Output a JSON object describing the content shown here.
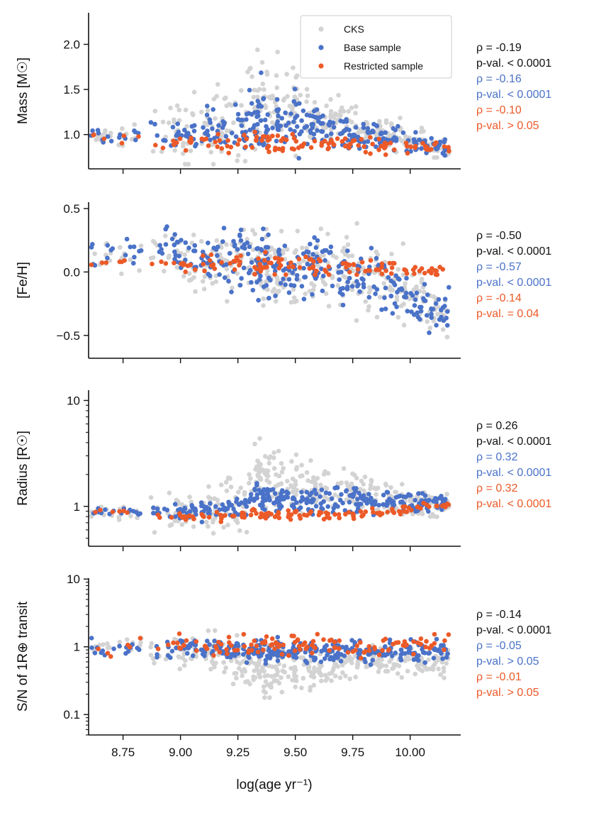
{
  "figure": {
    "x_label": "log(age yr⁻¹)",
    "x_ticks": [
      "8.75",
      "9.00",
      "9.25",
      "9.50",
      "9.75",
      "10.00"
    ],
    "colors": {
      "cks": "#d3d3d3",
      "base": "#4a72c8",
      "restricted": "#ec5a28",
      "text": "#111111",
      "axis": "#111111"
    }
  },
  "legend": {
    "entries": [
      {
        "label": "CKS",
        "color": "#d3d3d3"
      },
      {
        "label": "Base sample",
        "color": "#4a72c8"
      },
      {
        "label": "Restricted sample",
        "color": "#ec5a28"
      }
    ]
  },
  "chart_data": [
    {
      "type": "scatter",
      "id": "mass",
      "ylabel": "Mass [M☉]",
      "yscale": "linear",
      "xlim": [
        8.6,
        10.22
      ],
      "ylim": [
        0.62,
        2.35
      ],
      "y_ticks": [
        {
          "v": 1.0,
          "label": "1.0"
        },
        {
          "v": 1.5,
          "label": "1.5"
        },
        {
          "v": 2.0,
          "label": "2.0"
        }
      ],
      "x": [
        8.66,
        8.78,
        8.92,
        9.02,
        9.14,
        9.24,
        9.34,
        9.38,
        9.46,
        9.54,
        9.62,
        9.72,
        9.82,
        9.92,
        10.02,
        10.12
      ],
      "series": [
        {
          "name": "CKS",
          "center": [
            0.98,
            0.99,
            1.05,
            1.02,
            1.08,
            1.15,
            1.3,
            1.35,
            1.3,
            1.25,
            1.2,
            1.12,
            1.05,
            0.98,
            0.92,
            0.85
          ],
          "spread": [
            0.08,
            0.12,
            0.25,
            0.3,
            0.3,
            0.35,
            0.4,
            0.4,
            0.35,
            0.3,
            0.25,
            0.2,
            0.16,
            0.14,
            0.12,
            0.1
          ]
        },
        {
          "name": "Base sample",
          "center": [
            0.98,
            0.98,
            1.0,
            1.02,
            1.05,
            1.08,
            1.18,
            1.2,
            1.15,
            1.12,
            1.1,
            1.05,
            1.0,
            0.95,
            0.9,
            0.85
          ],
          "spread": [
            0.08,
            0.08,
            0.14,
            0.16,
            0.2,
            0.22,
            0.3,
            0.3,
            0.28,
            0.25,
            0.22,
            0.18,
            0.15,
            0.12,
            0.1,
            0.08
          ]
        },
        {
          "name": "Restricted sample",
          "center": [
            0.99,
            0.96,
            0.92,
            0.9,
            0.92,
            0.9,
            0.92,
            0.9,
            0.88,
            0.9,
            0.88,
            0.9,
            0.88,
            0.86,
            0.86,
            0.85
          ],
          "spread": [
            0.05,
            0.06,
            0.08,
            0.08,
            0.09,
            0.09,
            0.1,
            0.1,
            0.1,
            0.09,
            0.09,
            0.08,
            0.08,
            0.07,
            0.06,
            0.05
          ]
        }
      ],
      "stats": [
        {
          "rho": "ρ = -0.19",
          "p": "p-val. < 0.0001",
          "color": "#111111"
        },
        {
          "rho": "ρ = -0.16",
          "p": "p-val. < 0.0001",
          "color": "#4a72c8"
        },
        {
          "rho": "ρ = -0.10",
          "p": "p-val. > 0.05",
          "color": "#ec5a28"
        }
      ]
    },
    {
      "type": "scatter",
      "id": "feh",
      "ylabel": "[Fe/H]",
      "yscale": "linear",
      "xlim": [
        8.6,
        10.22
      ],
      "ylim": [
        -0.68,
        0.55
      ],
      "y_ticks": [
        {
          "v": -0.5,
          "label": "−0.5"
        },
        {
          "v": 0.0,
          "label": "0.0"
        },
        {
          "v": 0.5,
          "label": "0.5"
        }
      ],
      "x": [
        8.66,
        8.78,
        8.92,
        9.02,
        9.14,
        9.24,
        9.34,
        9.38,
        9.46,
        9.54,
        9.62,
        9.72,
        9.82,
        9.92,
        10.02,
        10.12
      ],
      "series": [
        {
          "name": "CKS",
          "center": [
            0.1,
            0.12,
            0.12,
            0.12,
            0.1,
            0.06,
            0.04,
            0.04,
            0.05,
            0.06,
            0.05,
            0.02,
            -0.05,
            -0.1,
            -0.18,
            -0.28
          ],
          "spread": [
            0.12,
            0.15,
            0.18,
            0.2,
            0.2,
            0.22,
            0.25,
            0.25,
            0.25,
            0.25,
            0.25,
            0.25,
            0.25,
            0.25,
            0.22,
            0.2
          ]
        },
        {
          "name": "Base sample",
          "center": [
            0.15,
            0.15,
            0.15,
            0.14,
            0.12,
            0.08,
            0.06,
            0.05,
            0.05,
            0.06,
            0.04,
            0.0,
            -0.06,
            -0.12,
            -0.2,
            -0.3
          ],
          "spread": [
            0.12,
            0.12,
            0.15,
            0.16,
            0.18,
            0.2,
            0.22,
            0.22,
            0.22,
            0.22,
            0.22,
            0.22,
            0.2,
            0.2,
            0.18,
            0.15
          ]
        },
        {
          "name": "Restricted sample",
          "center": [
            0.07,
            0.1,
            0.08,
            0.06,
            0.08,
            0.06,
            0.05,
            0.07,
            0.06,
            0.06,
            0.05,
            0.05,
            0.04,
            0.04,
            0.0,
            0.0
          ],
          "spread": [
            0.03,
            0.04,
            0.05,
            0.05,
            0.06,
            0.06,
            0.06,
            0.06,
            0.06,
            0.06,
            0.06,
            0.05,
            0.05,
            0.05,
            0.04,
            0.03
          ]
        }
      ],
      "stats": [
        {
          "rho": "ρ = -0.50",
          "p": "p-val. < 0.0001",
          "color": "#111111"
        },
        {
          "rho": "ρ = -0.57",
          "p": "p-val. < 0.0001",
          "color": "#4a72c8"
        },
        {
          "rho": "ρ = -0.14",
          "p": "p-val. = 0.04",
          "color": "#ec5a28"
        }
      ]
    },
    {
      "type": "scatter",
      "id": "radius",
      "ylabel": "Radius [R☉]",
      "yscale": "log",
      "xlim": [
        8.6,
        10.22
      ],
      "ylim": [
        0.42,
        12.5
      ],
      "y_ticks": [
        {
          "v": 1,
          "label": "1"
        },
        {
          "v": 10,
          "label": "10"
        }
      ],
      "x": [
        8.66,
        8.78,
        8.92,
        9.02,
        9.14,
        9.24,
        9.34,
        9.38,
        9.46,
        9.54,
        9.62,
        9.72,
        9.82,
        9.92,
        10.02,
        10.12
      ],
      "series": [
        {
          "name": "CKS",
          "center": [
            0.85,
            0.85,
            0.95,
            0.95,
            1.0,
            1.2,
            1.8,
            2.0,
            1.6,
            1.5,
            1.4,
            1.4,
            1.3,
            1.2,
            1.1,
            1.0
          ],
          "spread": [
            0.08,
            0.1,
            0.3,
            0.3,
            0.35,
            0.45,
            0.5,
            0.5,
            0.4,
            0.35,
            0.3,
            0.3,
            0.28,
            0.25,
            0.2,
            0.15
          ]
        },
        {
          "name": "Base sample",
          "center": [
            0.9,
            0.9,
            0.9,
            0.9,
            0.92,
            0.95,
            1.2,
            1.3,
            1.2,
            1.15,
            1.15,
            1.15,
            1.1,
            1.1,
            1.05,
            1.05
          ],
          "spread": [
            0.06,
            0.06,
            0.1,
            0.12,
            0.14,
            0.16,
            0.25,
            0.25,
            0.22,
            0.2,
            0.2,
            0.2,
            0.18,
            0.16,
            0.14,
            0.12
          ]
        },
        {
          "name": "Restricted sample",
          "center": [
            0.88,
            0.85,
            0.8,
            0.8,
            0.8,
            0.82,
            0.85,
            0.85,
            0.85,
            0.85,
            0.85,
            0.85,
            0.87,
            0.88,
            0.95,
            1.0
          ],
          "spread": [
            0.04,
            0.05,
            0.06,
            0.07,
            0.07,
            0.07,
            0.08,
            0.08,
            0.08,
            0.08,
            0.08,
            0.08,
            0.08,
            0.08,
            0.07,
            0.06
          ]
        }
      ],
      "stats": [
        {
          "rho": "ρ = 0.26",
          "p": "p-val. < 0.0001",
          "color": "#111111"
        },
        {
          "rho": "ρ = 0.32",
          "p": "p-val. < 0.0001",
          "color": "#4a72c8"
        },
        {
          "rho": "ρ = 0.32",
          "p": "p-val. < 0.0001",
          "color": "#ec5a28"
        }
      ]
    },
    {
      "type": "scatter",
      "id": "snr",
      "ylabel": "S/N of 1R⊕ transit",
      "yscale": "log",
      "xlim": [
        8.6,
        10.22
      ],
      "ylim": [
        0.05,
        10.3
      ],
      "y_ticks": [
        {
          "v": 0.1,
          "label": "0.1"
        },
        {
          "v": 1,
          "label": "1"
        },
        {
          "v": 10,
          "label": "10"
        }
      ],
      "x": [
        8.66,
        8.78,
        8.92,
        9.02,
        9.14,
        9.24,
        9.34,
        9.38,
        9.46,
        9.54,
        9.62,
        9.72,
        9.82,
        9.92,
        10.02,
        10.12
      ],
      "series": [
        {
          "name": "CKS",
          "center": [
            1.0,
            1.0,
            0.9,
            0.85,
            0.8,
            0.6,
            0.45,
            0.4,
            0.45,
            0.5,
            0.5,
            0.55,
            0.6,
            0.6,
            0.6,
            0.6
          ],
          "spread": [
            0.2,
            0.25,
            0.35,
            0.4,
            0.45,
            0.55,
            0.6,
            0.6,
            0.55,
            0.5,
            0.45,
            0.45,
            0.4,
            0.35,
            0.3,
            0.3
          ]
        },
        {
          "name": "Base sample",
          "center": [
            1.0,
            1.0,
            1.0,
            1.0,
            0.95,
            0.9,
            0.85,
            0.85,
            0.85,
            0.85,
            0.85,
            0.85,
            0.85,
            0.85,
            0.85,
            0.9
          ],
          "spread": [
            0.2,
            0.22,
            0.25,
            0.25,
            0.25,
            0.25,
            0.25,
            0.25,
            0.25,
            0.25,
            0.25,
            0.25,
            0.25,
            0.25,
            0.25,
            0.2
          ]
        },
        {
          "name": "Restricted sample",
          "center": [
            0.8,
            1.0,
            1.1,
            1.1,
            1.0,
            1.0,
            1.0,
            1.05,
            1.0,
            1.0,
            1.05,
            1.0,
            1.0,
            1.05,
            1.1,
            1.2
          ],
          "spread": [
            0.2,
            0.22,
            0.25,
            0.25,
            0.25,
            0.25,
            0.25,
            0.25,
            0.25,
            0.25,
            0.25,
            0.25,
            0.25,
            0.25,
            0.22,
            0.2
          ]
        }
      ],
      "stats": [
        {
          "rho": "ρ = -0.14",
          "p": "p-val. < 0.0001",
          "color": "#111111"
        },
        {
          "rho": "ρ = -0.05",
          "p": "p-val. > 0.05",
          "color": "#4a72c8"
        },
        {
          "rho": "ρ = -0.01",
          "p": "p-val. > 0.05",
          "color": "#ec5a28"
        }
      ]
    }
  ]
}
